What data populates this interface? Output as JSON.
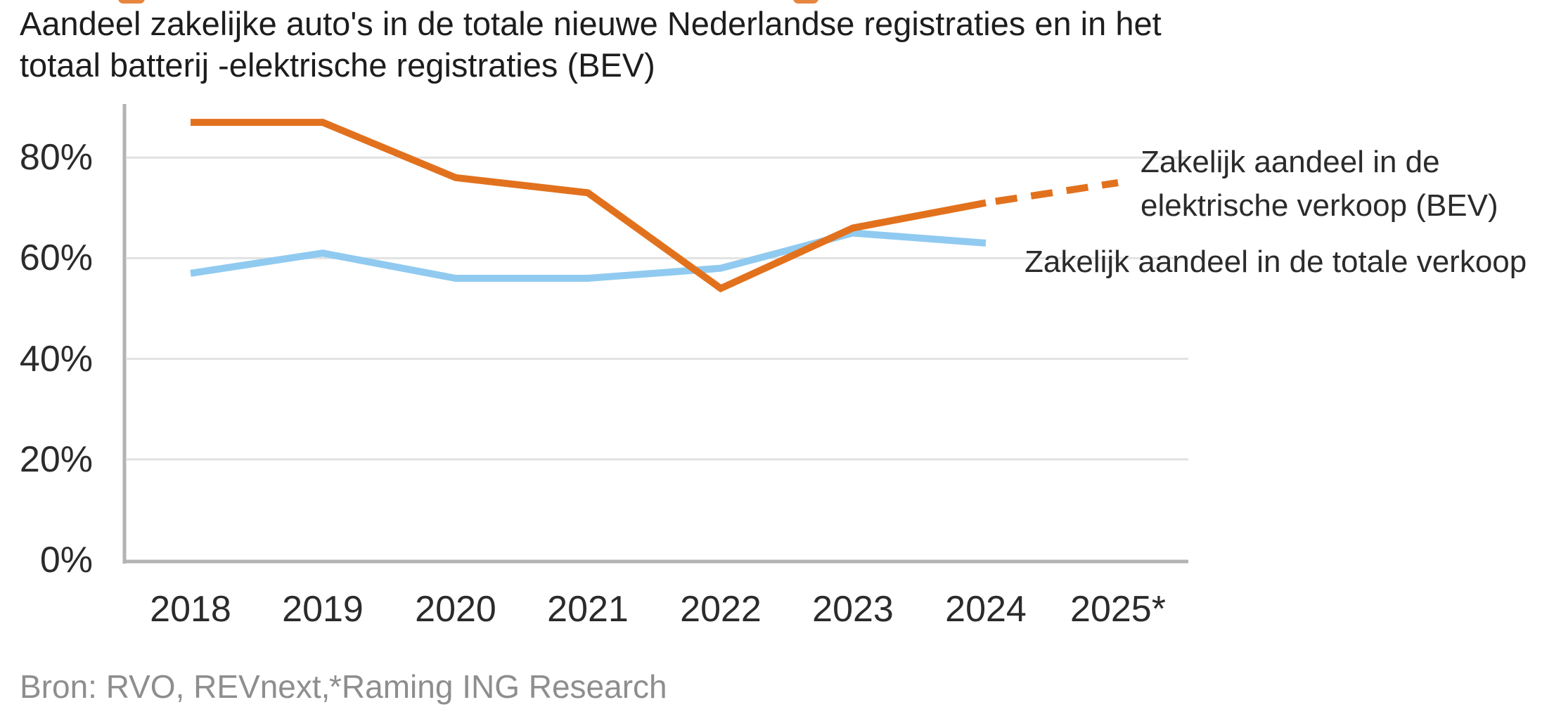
{
  "title": "Aandeel zakelijke auto's in de totale nieuwe Nederlandse registraties en in het\ntotaal batterij -elektrische registraties (BEV)",
  "legend": {
    "bev": "Zakelijk aandeel in de\nelektrische verkoop (BEV)",
    "total": "Zakelijk aandeel in de totale verkoop"
  },
  "source": {
    "part1": "Bron: RVO, REVnext,",
    "part2": "*Raming ING Research"
  },
  "colors": {
    "bev_line": "#e2711d",
    "total_line": "#90caf0",
    "grid": "#e2e2e2",
    "axis": "#b3b3b3",
    "text": "#2b2b2b",
    "source_text": "#8e8e8e"
  },
  "chart_data": {
    "type": "line",
    "title": "Aandeel zakelijke auto's in de totale nieuwe Nederlandse registraties en in het totaal batterij -elektrische registraties (BEV)",
    "categories": [
      "2018",
      "2019",
      "2020",
      "2021",
      "2022",
      "2023",
      "2024",
      "2025*"
    ],
    "series": [
      {
        "name": "Zakelijk aandeel in de totale verkoop",
        "color_key": "total_line",
        "unit": "%",
        "values": [
          57,
          61,
          56,
          56,
          58,
          65,
          63,
          null
        ]
      },
      {
        "name": "Zakelijk aandeel in de elektrische verkoop (BEV)",
        "color_key": "bev_line",
        "unit": "%",
        "values": [
          87,
          87,
          76,
          73,
          54,
          66,
          71,
          75
        ],
        "dashed_from_index": 6,
        "dashed_note": "2025 value is a projection (dashed segment)"
      }
    ],
    "y_ticks": [
      "0%",
      "20%",
      "40%",
      "60%",
      "80%"
    ],
    "y_tick_values": [
      0,
      20,
      40,
      60,
      80
    ],
    "ylim": [
      0,
      90
    ],
    "xlabel": "",
    "ylabel": "",
    "grid": "horizontal",
    "legend_position": "right-inline"
  }
}
